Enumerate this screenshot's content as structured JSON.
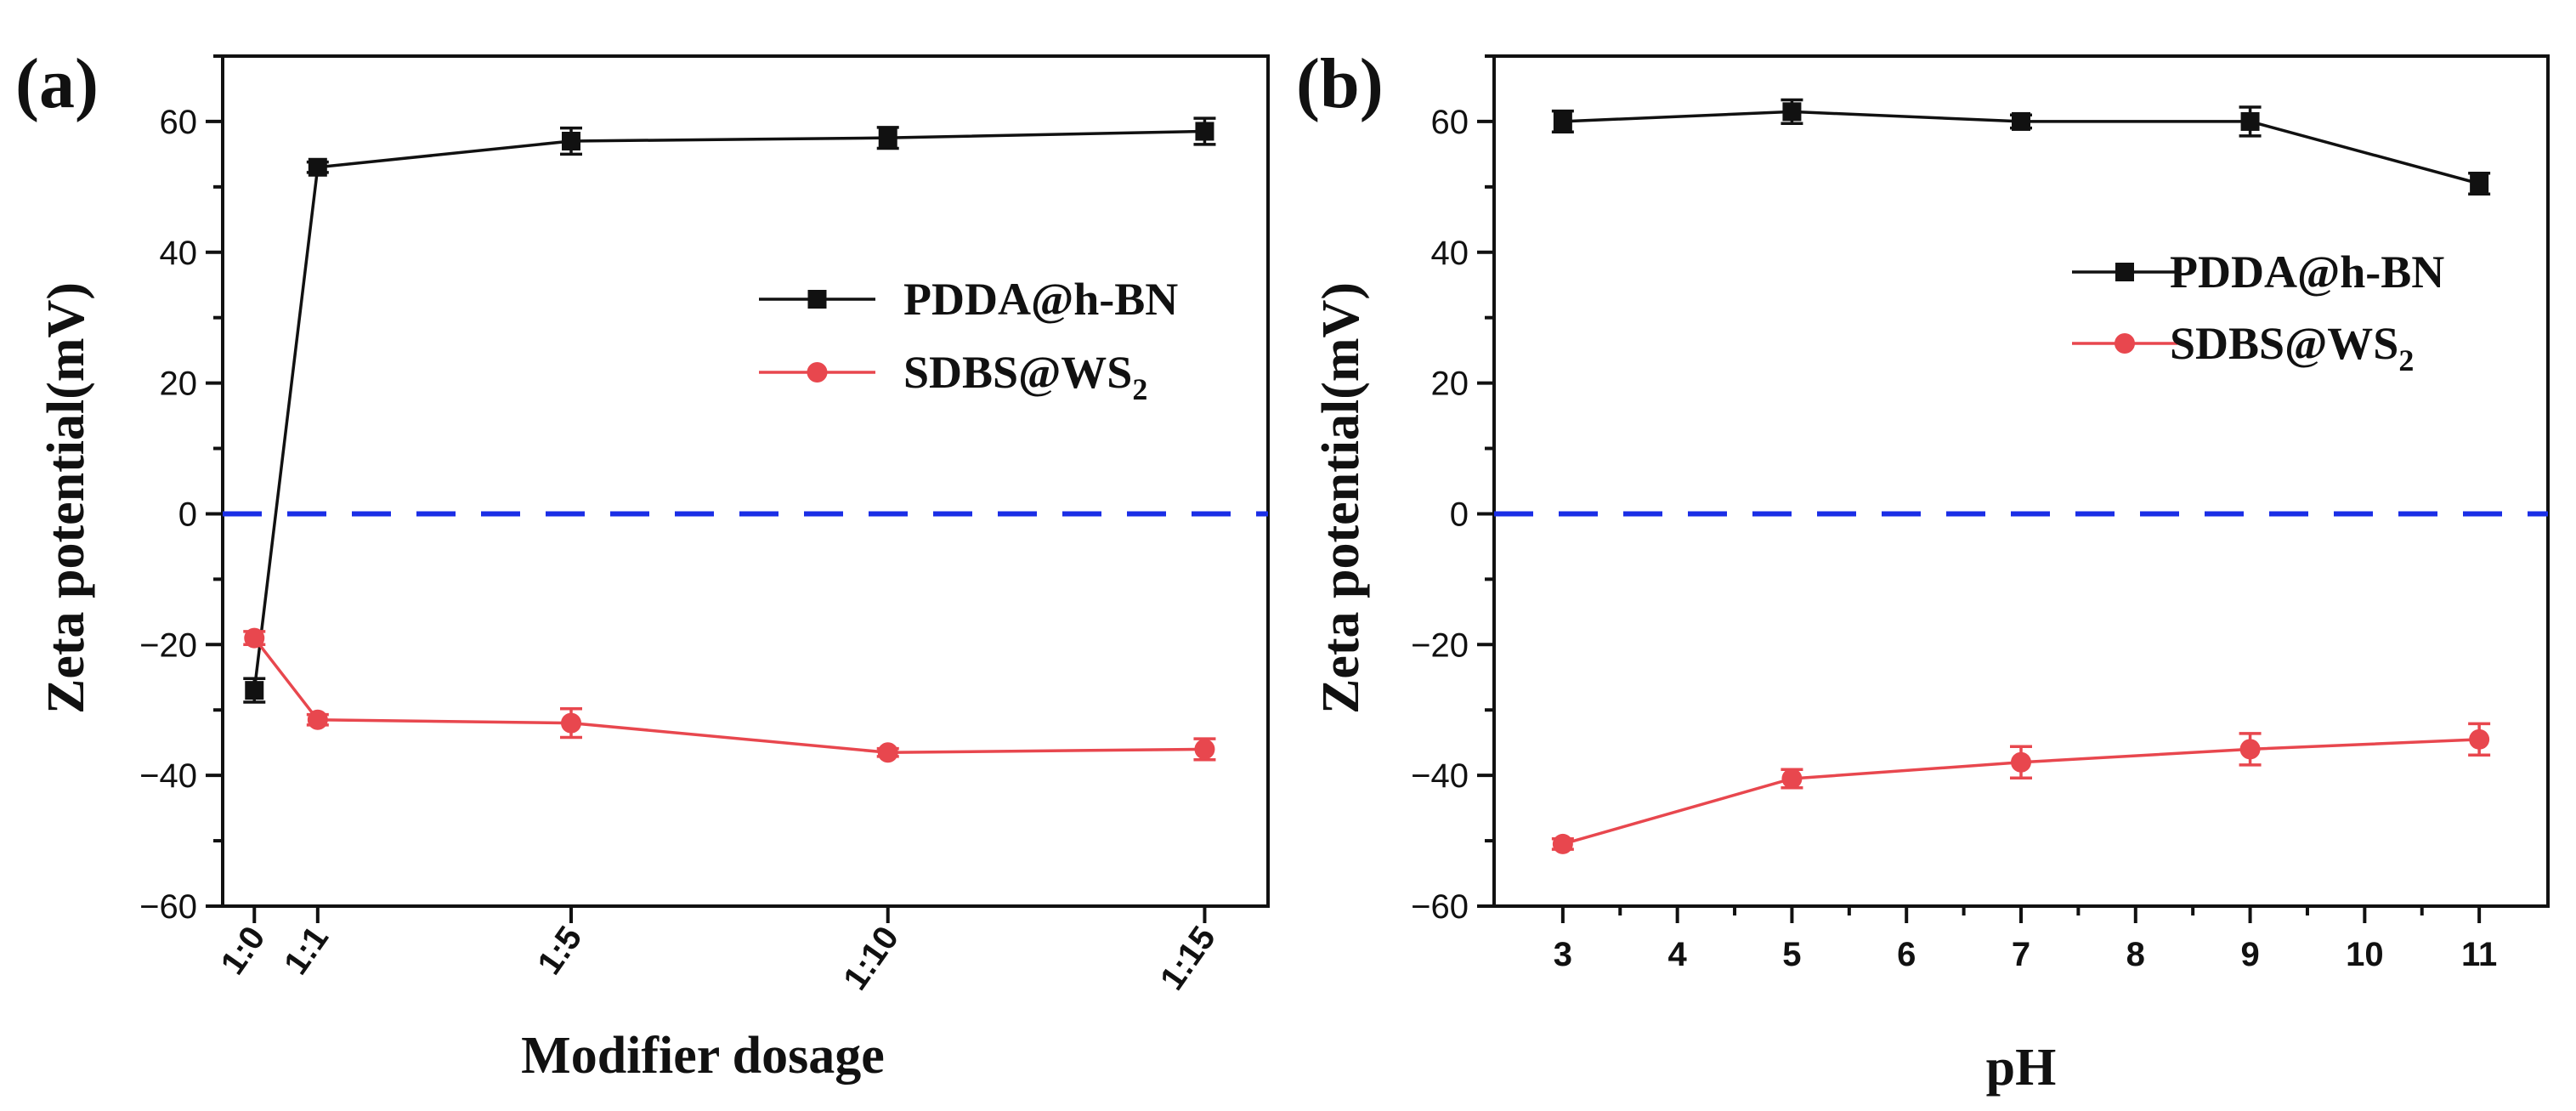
{
  "chart_data": [
    {
      "type": "line",
      "panel_label": "(a)",
      "xlabel": "Modifier dosage",
      "ylabel": "Zeta potential(mV)",
      "x_tick_labels": [
        "1:0",
        "1:1",
        "1:5",
        "1:10",
        "1:15"
      ],
      "x": [
        0,
        1,
        5,
        10,
        15
      ],
      "xlim": [
        -0.5,
        16
      ],
      "ylim": [
        -60,
        70
      ],
      "y_ticks": [
        -60,
        -40,
        -20,
        0,
        20,
        40,
        60
      ],
      "reference_line": 0,
      "legend_position": "center-right",
      "series": [
        {
          "name": "PDDA@h-BN",
          "name_base": "PDDA@h-BN",
          "name_sub": "",
          "marker": "square",
          "color": "#111111",
          "values": [
            -27,
            53,
            57,
            57.5,
            58.5
          ],
          "errors": [
            1.8,
            0.8,
            2.0,
            1.6,
            2.0
          ]
        },
        {
          "name": "SDBS@WS2",
          "name_base": "SDBS@WS",
          "name_sub": "2",
          "marker": "circle",
          "color": "#e8474e",
          "values": [
            -19,
            -31.5,
            -32,
            -36.5,
            -36
          ],
          "errors": [
            1.0,
            0.8,
            2.2,
            0.6,
            1.6
          ]
        }
      ]
    },
    {
      "type": "line",
      "panel_label": "(b)",
      "xlabel": "pH",
      "ylabel": "Zeta potential(mV)",
      "x_tick_labels": [
        "3",
        "4",
        "5",
        "6",
        "7",
        "8",
        "9",
        "10",
        "11"
      ],
      "x": [
        3,
        5,
        7,
        9,
        11
      ],
      "x_ticks": [
        3,
        4,
        5,
        6,
        7,
        8,
        9,
        10,
        11
      ],
      "xlim": [
        2.4,
        11.6
      ],
      "ylim": [
        -60,
        70
      ],
      "y_ticks": [
        -60,
        -40,
        -20,
        0,
        20,
        40,
        60
      ],
      "reference_line": 0,
      "legend_position": "center-right",
      "series": [
        {
          "name": "PDDA@h-BN",
          "name_base": "PDDA@h-BN",
          "name_sub": "",
          "marker": "square",
          "color": "#111111",
          "values": [
            60,
            61.5,
            60,
            60,
            50.5
          ],
          "errors": [
            1.6,
            1.8,
            1.0,
            2.2,
            1.6
          ]
        },
        {
          "name": "SDBS@WS2",
          "name_base": "SDBS@WS",
          "name_sub": "2",
          "marker": "circle",
          "color": "#e8474e",
          "values": [
            -50.5,
            -40.5,
            -38,
            -36,
            -34.5
          ],
          "errors": [
            0.8,
            1.4,
            2.4,
            2.4,
            2.4
          ]
        }
      ]
    }
  ],
  "colors": {
    "reference_line": "#1a2ee6",
    "axis": "#111111"
  }
}
